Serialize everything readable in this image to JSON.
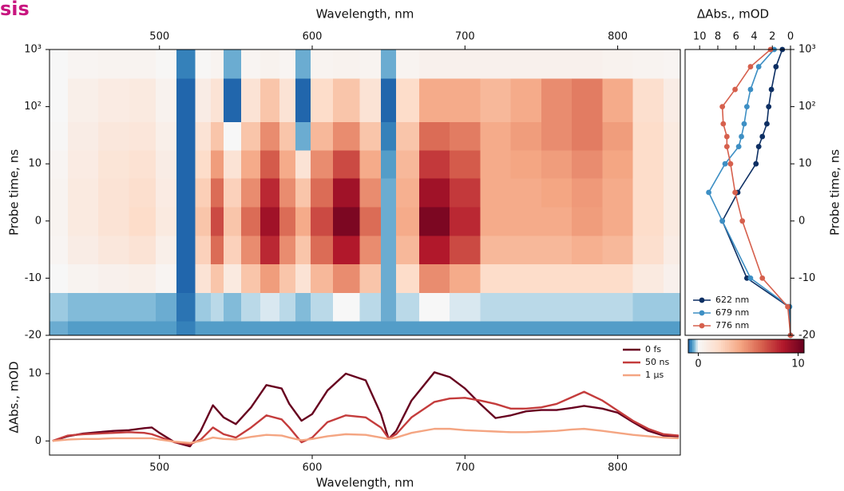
{
  "chart_data": [
    {
      "type": "heatmap",
      "title": "sis",
      "xlabel": "Wavelength, nm",
      "ylabel": "Probe time, ns",
      "x": [
        430,
        450,
        470,
        490,
        505,
        517,
        530,
        537,
        547,
        560,
        572,
        585,
        593,
        605,
        622,
        640,
        650,
        660,
        680,
        700,
        720,
        740,
        760,
        780,
        800,
        820,
        840
      ],
      "y": [
        -20,
        -15,
        -10,
        -5,
        0,
        5,
        10,
        30,
        100,
        1000
      ],
      "z": [
        [
          -0.5,
          -0.6,
          -0.6,
          -0.6,
          -0.6,
          -0.8,
          -0.6,
          -0.6,
          -0.6,
          -0.6,
          -0.6,
          -0.6,
          -0.6,
          -0.6,
          -0.6,
          -0.6,
          -0.6,
          -0.6,
          -0.6,
          -0.6,
          -0.6,
          -0.6,
          -0.6,
          -0.6,
          -0.6,
          -0.6,
          -0.6
        ],
        [
          -0.3,
          -0.4,
          -0.4,
          -0.4,
          -0.5,
          -0.9,
          -0.3,
          -0.2,
          -0.4,
          -0.2,
          -0.1,
          -0.2,
          -0.4,
          -0.2,
          0,
          -0.2,
          -0.5,
          -0.2,
          0,
          -0.1,
          -0.2,
          -0.2,
          -0.2,
          -0.2,
          -0.2,
          -0.3,
          -0.3
        ],
        [
          0,
          0.3,
          0.5,
          0.6,
          0.2,
          -1,
          1.5,
          3,
          1,
          3,
          4.5,
          3,
          1.5,
          3.5,
          5,
          3,
          -0.5,
          2,
          5,
          4,
          2,
          2,
          2,
          2,
          2,
          1,
          0.5
        ],
        [
          0.2,
          0.8,
          1.2,
          1.5,
          0.6,
          -1,
          2.5,
          6,
          2.5,
          5,
          8,
          5,
          3,
          6,
          8.5,
          5,
          -0.5,
          3.5,
          8.5,
          7,
          3.5,
          3.5,
          3.5,
          3.8,
          3.5,
          1.8,
          0.8
        ],
        [
          0.3,
          1,
          1.5,
          2,
          1,
          -1,
          3,
          7,
          3,
          6,
          9,
          6,
          4,
          7,
          10,
          6,
          -0.5,
          4,
          10,
          8,
          4,
          4,
          4,
          4.5,
          4,
          2,
          1
        ],
        [
          0.3,
          1,
          1.5,
          1.8,
          0.9,
          -1,
          2.6,
          6,
          2.5,
          5,
          8,
          5,
          3,
          6,
          9,
          5,
          -0.5,
          3.8,
          9,
          7.5,
          4,
          4,
          4.2,
          4.6,
          4,
          2,
          1
        ],
        [
          0.2,
          0.9,
          1.4,
          1.6,
          0.8,
          -1,
          2,
          4.5,
          1.5,
          4,
          6.5,
          4,
          1.5,
          5,
          7,
          4,
          -0.6,
          3.5,
          7.5,
          6.5,
          4,
          4.2,
          4.5,
          5,
          4.2,
          2,
          1
        ],
        [
          0.1,
          0.8,
          1.2,
          1.3,
          0.6,
          -1.1,
          1.5,
          3,
          0,
          3,
          5,
          3,
          -0.5,
          3.5,
          5,
          3,
          -0.8,
          3,
          6,
          5.5,
          4,
          4.5,
          5,
          5.5,
          4.5,
          2,
          1
        ],
        [
          0,
          0.6,
          0.9,
          1,
          0.4,
          -1.2,
          0.8,
          1.5,
          -1,
          1.5,
          3,
          1.5,
          -1.2,
          2,
          3,
          1.5,
          -1,
          2,
          4,
          4,
          3.5,
          4,
          5,
          5.5,
          4,
          1.8,
          0.8
        ],
        [
          0,
          0.2,
          0.3,
          0.3,
          0.1,
          -0.8,
          0.1,
          0.3,
          -0.5,
          0.2,
          0.4,
          0.2,
          -0.5,
          0.3,
          0.4,
          0.3,
          -0.5,
          0.3,
          0.5,
          0.5,
          0.5,
          0.5,
          0.5,
          0.5,
          0.4,
          0.3,
          0.2
        ]
      ],
      "xlim": [
        428,
        841
      ],
      "xticks": [
        500,
        600,
        700,
        800
      ],
      "ylim": [
        -20,
        1000
      ],
      "yscale": "symlog",
      "linthresh": 10,
      "yticks": [
        {
          "value": 1000,
          "label": "10³"
        },
        {
          "value": 100,
          "label": "10²"
        },
        10,
        0,
        -10,
        -20
      ],
      "colormap": "RdBu_r",
      "clim": [
        -1,
        10.6
      ],
      "cticks": [
        0,
        10
      ]
    },
    {
      "type": "line",
      "orientation": "horizontal",
      "markers": true,
      "xlabel": "ΔAbs., mOD",
      "ylabel": "Probe time, ns",
      "y": [
        -20,
        -15,
        -10,
        0,
        5,
        10,
        20,
        30,
        50,
        100,
        200,
        500,
        1000
      ],
      "series": [
        {
          "name": "622 nm",
          "color": "#0d2f63",
          "values": [
            0,
            0.2,
            4.8,
            7.5,
            5.8,
            3.8,
            3.5,
            3.1,
            2.6,
            2.4,
            2.1,
            1.6,
            0.9
          ]
        },
        {
          "name": "679 nm",
          "color": "#3d8fc4",
          "values": [
            0,
            0.1,
            4.4,
            7.5,
            9.0,
            7.2,
            5.7,
            5.4,
            5.1,
            4.8,
            4.4,
            3.5,
            1.8
          ]
        },
        {
          "name": "776 nm",
          "color": "#d6604d",
          "values": [
            0,
            0.3,
            3.1,
            5.3,
            6.1,
            6.6,
            7.0,
            7.0,
            7.4,
            7.5,
            6.1,
            4.4,
            2.2
          ]
        }
      ],
      "xlim": [
        11.6,
        0
      ],
      "xticks": [
        10,
        8,
        6,
        4,
        2,
        0
      ],
      "ylim": [
        -20,
        1000
      ],
      "yscale": "symlog",
      "linthresh": 10,
      "yticks": [
        {
          "value": 1000,
          "label": "10³"
        },
        {
          "value": 100,
          "label": "10²"
        },
        10,
        0,
        -10,
        -20
      ],
      "legend": "lower left"
    },
    {
      "type": "line",
      "xlabel": "Wavelength, nm",
      "ylabel": "ΔAbs., mOD",
      "x": [
        430,
        440,
        450,
        460,
        470,
        480,
        490,
        495,
        500,
        510,
        520,
        527,
        535,
        542,
        550,
        560,
        570,
        580,
        585,
        593,
        600,
        610,
        622,
        635,
        645,
        650,
        655,
        665,
        680,
        690,
        700,
        710,
        720,
        730,
        740,
        750,
        760,
        770,
        778,
        790,
        800,
        810,
        820,
        830,
        840
      ],
      "series": [
        {
          "name": "0 fs",
          "color": "#67001f",
          "values": [
            0,
            0.7,
            1.1,
            1.3,
            1.5,
            1.6,
            1.9,
            2.0,
            1.2,
            -0.2,
            -0.8,
            1.5,
            5.3,
            3.5,
            2.5,
            5.0,
            8.3,
            7.8,
            5.5,
            3.0,
            4.0,
            7.5,
            10.0,
            9.0,
            4.0,
            0.3,
            1.5,
            6.0,
            10.2,
            9.5,
            7.8,
            5.5,
            3.4,
            3.8,
            4.4,
            4.6,
            4.6,
            4.9,
            5.2,
            4.8,
            4.2,
            2.8,
            1.5,
            0.8,
            0.7
          ]
        },
        {
          "name": "50 ns",
          "color": "#c43c3c",
          "values": [
            0,
            0.8,
            1.0,
            1.1,
            1.2,
            1.3,
            1.2,
            1.0,
            0.6,
            -0.2,
            -0.5,
            0.2,
            2.0,
            1.0,
            0.5,
            2.0,
            3.8,
            3.2,
            2.0,
            -0.2,
            0.5,
            2.8,
            3.8,
            3.5,
            2.0,
            0.4,
            1.0,
            3.5,
            5.8,
            6.3,
            6.4,
            6.0,
            5.5,
            4.8,
            4.8,
            5.0,
            5.5,
            6.5,
            7.3,
            6.0,
            4.5,
            3.0,
            1.8,
            1.0,
            0.8
          ]
        },
        {
          "name": "1 µs",
          "color": "#f4a582",
          "values": [
            0,
            0.2,
            0.3,
            0.3,
            0.4,
            0.4,
            0.4,
            0.4,
            0.2,
            -0.1,
            -0.3,
            0,
            0.5,
            0.3,
            0.2,
            0.6,
            0.9,
            0.8,
            0.5,
            0.1,
            0.3,
            0.7,
            1.0,
            0.9,
            0.5,
            0.3,
            0.5,
            1.2,
            1.8,
            1.8,
            1.6,
            1.5,
            1.4,
            1.3,
            1.3,
            1.4,
            1.5,
            1.7,
            1.8,
            1.5,
            1.2,
            0.9,
            0.7,
            0.5,
            0.4
          ]
        }
      ],
      "xlim": [
        428,
        841
      ],
      "xticks": [
        500,
        600,
        700,
        800
      ],
      "ylim": [
        -2.1,
        15.1
      ],
      "yticks": [
        0,
        10
      ],
      "legend": "upper right"
    }
  ]
}
